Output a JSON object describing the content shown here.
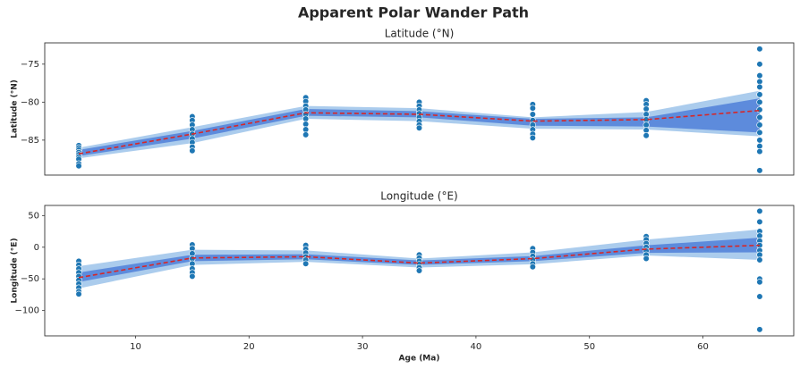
{
  "title": "Apparent Polar Wander Path",
  "chart_data": [
    {
      "type": "line",
      "title": "Latitude (°N)",
      "ylabel": "Latitude (°N)",
      "xlim": [
        2,
        68
      ],
      "ylim": [
        -89.6,
        -72.2
      ],
      "yticks": [
        {
          "value": -85,
          "label": "−85"
        },
        {
          "value": -80,
          "label": "−80"
        },
        {
          "value": -75,
          "label": "−75"
        }
      ],
      "x": [
        5,
        15,
        25,
        35,
        45,
        55,
        65
      ],
      "bands": [
        {
          "color": "#9cc3ea",
          "lower": [
            -87.4,
            -85.4,
            -82.2,
            -82.5,
            -83.5,
            -83.6,
            -84.5
          ],
          "upper": [
            -86.0,
            -83.3,
            -80.5,
            -80.8,
            -82.0,
            -81.3,
            -78.5
          ]
        },
        {
          "color": "#4f7fd8",
          "lower": [
            -87.1,
            -84.8,
            -81.8,
            -82.0,
            -83.1,
            -83.2,
            -84.0
          ],
          "upper": [
            -86.3,
            -83.8,
            -80.9,
            -81.2,
            -82.2,
            -82.0,
            -79.5
          ]
        }
      ],
      "mean": {
        "color": "#d62728",
        "values": [
          -86.8,
          -84.2,
          -81.4,
          -81.6,
          -82.5,
          -82.3,
          -81.1
        ]
      },
      "points": {
        "color": "#1f77b4",
        "x": [
          5,
          5,
          5,
          5,
          5,
          5,
          5,
          5,
          5,
          15,
          15,
          15,
          15,
          15,
          15,
          15,
          15,
          15,
          25,
          25,
          25,
          25,
          25,
          25,
          25,
          25,
          25,
          35,
          35,
          35,
          35,
          35,
          35,
          35,
          35,
          45,
          45,
          45,
          45,
          45,
          45,
          45,
          45,
          55,
          55,
          55,
          55,
          55,
          55,
          55,
          55,
          65,
          65,
          65,
          65,
          65,
          65,
          65,
          65,
          65,
          65,
          65,
          65,
          65,
          65,
          65
        ],
        "y": [
          -85.7,
          -86.0,
          -86.3,
          -86.6,
          -86.9,
          -87.2,
          -87.5,
          -88.1,
          -88.4,
          -81.9,
          -82.4,
          -83.0,
          -83.6,
          -84.2,
          -84.8,
          -85.3,
          -85.9,
          -86.4,
          -79.4,
          -79.9,
          -80.5,
          -81.0,
          -81.6,
          -82.2,
          -82.9,
          -83.6,
          -84.3,
          -80.0,
          -80.5,
          -81.0,
          -81.5,
          -82.0,
          -82.5,
          -83.0,
          -83.4,
          -80.3,
          -80.8,
          -81.6,
          -82.4,
          -83.0,
          -83.6,
          -84.2,
          -84.7,
          -79.8,
          -80.3,
          -80.9,
          -81.6,
          -82.3,
          -83.0,
          -83.7,
          -84.4,
          -73.0,
          -75.0,
          -76.5,
          -77.3,
          -78.0,
          -79.0,
          -80.0,
          -81.0,
          -82.0,
          -83.0,
          -84.0,
          -85.0,
          -85.8,
          -86.5,
          -89.0
        ]
      }
    },
    {
      "type": "line",
      "title": "Longitude (°E)",
      "ylabel": "Longitude (°E)",
      "xlabel": "Age (Ma)",
      "xlim": [
        2,
        68
      ],
      "ylim": [
        -140,
        66
      ],
      "xticks": [
        10,
        20,
        30,
        40,
        50,
        60
      ],
      "yticks": [
        {
          "value": -100,
          "label": "−100"
        },
        {
          "value": -50,
          "label": "−50"
        },
        0,
        50
      ],
      "x": [
        5,
        15,
        25,
        35,
        45,
        55,
        65
      ],
      "bands": [
        {
          "color": "#9cc3ea",
          "lower": [
            -65,
            -28,
            -23,
            -32,
            -27,
            -13,
            -20
          ],
          "upper": [
            -30,
            -4,
            -5,
            -18,
            -8,
            12,
            28
          ]
        },
        {
          "color": "#4f7fd8",
          "lower": [
            -55,
            -22,
            -19,
            -28,
            -22,
            -9,
            -8
          ],
          "upper": [
            -40,
            -12,
            -11,
            -21,
            -14,
            3,
            15
          ]
        }
      ],
      "mean": {
        "color": "#d62728",
        "values": [
          -48,
          -17,
          -15,
          -25,
          -18,
          -3,
          3
        ]
      },
      "points": {
        "color": "#1f77b4",
        "x": [
          5,
          5,
          5,
          5,
          5,
          5,
          5,
          5,
          5,
          5,
          15,
          15,
          15,
          15,
          15,
          15,
          15,
          15,
          25,
          25,
          25,
          25,
          25,
          25,
          35,
          35,
          35,
          35,
          35,
          35,
          45,
          45,
          45,
          45,
          45,
          45,
          55,
          55,
          55,
          55,
          55,
          55,
          55,
          65,
          65,
          65,
          65,
          65,
          65,
          65,
          65,
          65,
          65,
          65,
          65,
          65
        ],
        "y": [
          -22,
          -28,
          -34,
          -40,
          -46,
          -52,
          -58,
          -64,
          -70,
          -74,
          4,
          -2,
          -10,
          -18,
          -26,
          -34,
          -40,
          -46,
          3,
          -3,
          -9,
          -15,
          -20,
          -26,
          -12,
          -17,
          -22,
          -27,
          -32,
          -37,
          -2,
          -8,
          -14,
          -20,
          -26,
          -31,
          17,
          12,
          6,
          0,
          -6,
          -12,
          -18,
          57,
          40,
          25,
          18,
          10,
          3,
          -5,
          -12,
          -20,
          -50,
          -55,
          -78,
          -130
        ]
      }
    }
  ]
}
